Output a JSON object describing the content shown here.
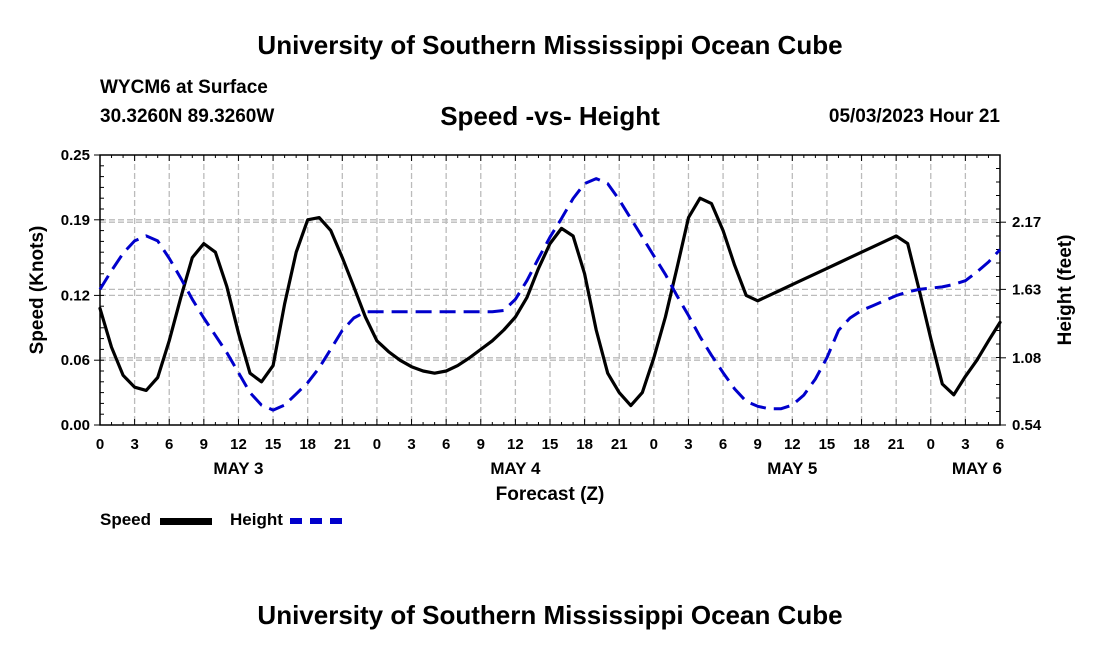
{
  "header": {
    "title": "University of Southern Mississippi Ocean Cube",
    "station": "WYCM6 at Surface",
    "coords": "30.3260N  89.3260W",
    "chart_title": "Speed -vs- Height",
    "datetime": "05/03/2023 Hour 21"
  },
  "footer": {
    "title": "University of Southern Mississippi Ocean Cube"
  },
  "colors": {
    "speed": "#000000",
    "height": "#0000cc",
    "grid": "#bbbbbb"
  },
  "chart_data": {
    "type": "line",
    "title": "Speed -vs- Height",
    "xlabel": "Forecast (Z)",
    "ylabel": "Speed (Knots)",
    "y2label": "Height (feet)",
    "xlim": [
      0,
      78
    ],
    "ylim": [
      0,
      0.25
    ],
    "y2lim": [
      0.54,
      2.71
    ],
    "grid": true,
    "x_ticks": [
      0,
      3,
      6,
      9,
      12,
      15,
      18,
      21,
      24,
      27,
      30,
      33,
      36,
      39,
      42,
      45,
      48,
      51,
      54,
      57,
      60,
      63,
      66,
      69,
      72,
      75,
      78
    ],
    "x_tick_labels": [
      "0",
      "3",
      "6",
      "9",
      "12",
      "15",
      "18",
      "21",
      "0",
      "3",
      "6",
      "9",
      "12",
      "15",
      "18",
      "21",
      "0",
      "3",
      "6",
      "9",
      "12",
      "15",
      "18",
      "21",
      "0",
      "3",
      "6"
    ],
    "y_ticks": [
      0,
      0.06,
      0.12,
      0.19,
      0.25
    ],
    "y_tick_labels": [
      "0.00",
      "0.06",
      "0.12",
      "0.19",
      "0.25"
    ],
    "y2_ticks": [
      0.54,
      1.08,
      1.63,
      2.17
    ],
    "y2_tick_labels": [
      "0.54",
      "1.08",
      "1.63",
      "2.17"
    ],
    "day_labels": [
      {
        "x": 12,
        "label": "MAY 3"
      },
      {
        "x": 36,
        "label": "MAY 4"
      },
      {
        "x": 60,
        "label": "MAY 5"
      },
      {
        "x": 76,
        "label": "MAY 6"
      }
    ],
    "series": [
      {
        "name": "Speed",
        "axis": "left",
        "style": "solid",
        "x": [
          0,
          1,
          2,
          3,
          4,
          5,
          6,
          7,
          8,
          9,
          10,
          11,
          12,
          13,
          14,
          15,
          16,
          17,
          18,
          19,
          20,
          21,
          22,
          23,
          24,
          25,
          26,
          27,
          28,
          29,
          30,
          31,
          32,
          33,
          34,
          35,
          36,
          37,
          38,
          39,
          40,
          41,
          42,
          43,
          44,
          45,
          46,
          47,
          48,
          49,
          50,
          51,
          52,
          53,
          54,
          55,
          56,
          57,
          58,
          59,
          60,
          61,
          62,
          63,
          64,
          65,
          66,
          67,
          68,
          69,
          70,
          71,
          72,
          73,
          74,
          75,
          76,
          77,
          78
        ],
        "values": [
          0.108,
          0.072,
          0.046,
          0.035,
          0.032,
          0.044,
          0.078,
          0.118,
          0.155,
          0.168,
          0.16,
          0.128,
          0.085,
          0.048,
          0.04,
          0.055,
          0.112,
          0.16,
          0.19,
          0.192,
          0.18,
          0.155,
          0.128,
          0.1,
          0.078,
          0.068,
          0.06,
          0.054,
          0.05,
          0.048,
          0.05,
          0.055,
          0.062,
          0.07,
          0.078,
          0.088,
          0.1,
          0.118,
          0.145,
          0.168,
          0.182,
          0.175,
          0.14,
          0.088,
          0.048,
          0.03,
          0.018,
          0.03,
          0.062,
          0.1,
          0.145,
          0.192,
          0.21,
          0.205,
          0.18,
          0.148,
          0.12,
          0.115,
          0.12,
          0.125,
          0.13,
          0.135,
          0.14,
          0.145,
          0.15,
          0.155,
          0.16,
          0.165,
          0.17,
          0.175,
          0.168,
          0.125,
          0.08,
          0.038,
          0.028,
          0.045,
          0.06,
          0.078,
          0.095
        ]
      },
      {
        "name": "Height",
        "axis": "right",
        "style": "dashed",
        "x": [
          0,
          1,
          2,
          3,
          4,
          5,
          6,
          7,
          8,
          9,
          10,
          11,
          12,
          13,
          14,
          15,
          16,
          17,
          18,
          19,
          20,
          21,
          22,
          23,
          24,
          25,
          26,
          27,
          28,
          29,
          30,
          31,
          32,
          33,
          34,
          35,
          36,
          37,
          38,
          39,
          40,
          41,
          42,
          43,
          44,
          45,
          46,
          47,
          48,
          49,
          50,
          51,
          52,
          53,
          54,
          55,
          56,
          57,
          58,
          59,
          60,
          61,
          62,
          63,
          64,
          65,
          66,
          67,
          68,
          69,
          70,
          71,
          72,
          73,
          74,
          75,
          76,
          77,
          78
        ],
        "values": [
          1.63,
          1.78,
          1.92,
          2.02,
          2.06,
          2.02,
          1.88,
          1.72,
          1.55,
          1.4,
          1.26,
          1.12,
          0.96,
          0.8,
          0.7,
          0.66,
          0.7,
          0.79,
          0.88,
          1.0,
          1.15,
          1.3,
          1.4,
          1.45,
          1.45,
          1.45,
          1.45,
          1.45,
          1.45,
          1.45,
          1.45,
          1.45,
          1.45,
          1.45,
          1.45,
          1.46,
          1.55,
          1.7,
          1.88,
          2.05,
          2.2,
          2.36,
          2.48,
          2.52,
          2.48,
          2.35,
          2.2,
          2.05,
          1.9,
          1.75,
          1.58,
          1.42,
          1.25,
          1.1,
          0.96,
          0.83,
          0.73,
          0.69,
          0.67,
          0.67,
          0.7,
          0.78,
          0.91,
          1.08,
          1.3,
          1.4,
          1.46,
          1.5,
          1.54,
          1.58,
          1.61,
          1.63,
          1.64,
          1.65,
          1.67,
          1.7,
          1.77,
          1.85,
          1.95
        ]
      }
    ],
    "legend": [
      {
        "name": "Speed",
        "style": "solid"
      },
      {
        "name": "Height",
        "style": "dashed"
      }
    ]
  }
}
